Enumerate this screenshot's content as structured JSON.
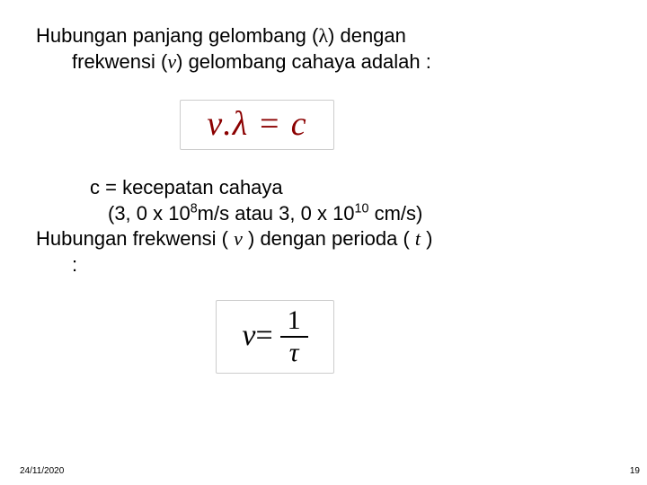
{
  "para1": {
    "line1_pre": "Hubungan panjang gelombang (",
    "line1_sym": "λ",
    "line1_post": ") dengan",
    "line2_pre": "frekwensi (",
    "line2_sym": "v",
    "line2_post": ") gelombang cahaya adalah :"
  },
  "eq1_text": "ν.λ = c",
  "eq1_color": "#8b0000",
  "c_label": "c  = kecepatan cahaya",
  "speed_pre": "(3, 0 x 10",
  "speed_exp1": "8",
  "speed_mid": "m/s  atau 3, 0 x 10",
  "speed_exp2": "10",
  "speed_post": " cm/s)",
  "para2": {
    "pre": "Hubungan frekwensi ( ",
    "sym1": "v",
    "mid": " )  dengan perioda ( ",
    "sym2": "t",
    "post": " )",
    "colon": ":"
  },
  "eq2": {
    "lhs": "ν",
    "eq": " = ",
    "num": "1",
    "den": "τ"
  },
  "footer": {
    "date": "24/11/2020",
    "page": "19"
  }
}
